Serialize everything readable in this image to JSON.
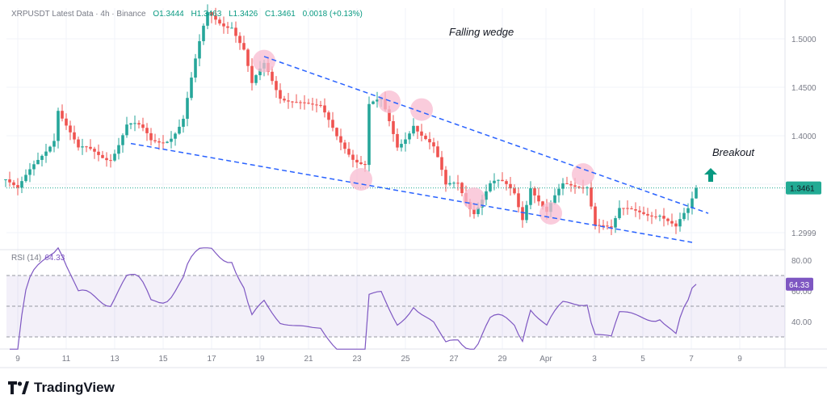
{
  "header": {
    "symbol": "XRPUSDT Latest Data · 4h · Binance",
    "open": "O1.3444",
    "high": "H1.3463",
    "low": "L1.3426",
    "close": "C1.3461",
    "change": "0.0018 (+0.13%)"
  },
  "annotations": {
    "pattern": "Falling wedge",
    "breakout": "Breakout"
  },
  "rsi": {
    "label": "RSI (14)",
    "value": "64.33",
    "color": "#7e57c2",
    "levels": [
      70,
      50,
      30
    ]
  },
  "price_axis": {
    "ticks": [
      "1.5000",
      "1.4500",
      "1.4000",
      "1.2999"
    ],
    "last_price": "1.3461",
    "last_color": "#22ab94"
  },
  "rsi_axis": {
    "ticks": [
      "80.00",
      "60.00",
      "40.00"
    ]
  },
  "time_axis": {
    "ticks": [
      "9",
      "11",
      "13",
      "15",
      "17",
      "19",
      "21",
      "23",
      "25",
      "27",
      "29",
      "Apr",
      "3",
      "5",
      "7",
      "9"
    ]
  },
  "brand": "TradingView",
  "colors": {
    "up": "#26a69a",
    "down": "#ef5350",
    "wedge": "#2962ff",
    "circle": "#f8bbd0",
    "arrow": "#089981"
  },
  "chart_data": {
    "type": "candlestick",
    "interval": "4h",
    "price_path": [
      [
        "Mar 08 12:00",
        1.355
      ],
      [
        "Mar 09 00:00",
        1.345
      ],
      [
        "Mar 09 16:00",
        1.37
      ],
      [
        "Mar 10 12:00",
        1.4
      ],
      [
        "Mar 10 16:00",
        1.43
      ],
      [
        "Mar 11 12:00",
        1.38
      ],
      [
        "Mar 12 20:00",
        1.385
      ],
      [
        "Mar 13 12:00",
        1.41
      ],
      [
        "Mar 14 12:00",
        1.39
      ],
      [
        "Mar 15 20:00",
        1.42
      ],
      [
        "Mar 16 08:00",
        1.47
      ],
      [
        "Mar 16 20:00",
        1.52
      ],
      [
        "Mar 17 20:00",
        1.52
      ],
      [
        "Mar 18 08:00",
        1.49
      ],
      [
        "Mar 18 16:00",
        1.45
      ],
      [
        "Mar 19 04:00",
        1.47
      ],
      [
        "Mar 19 20:00",
        1.44
      ],
      [
        "Mar 21 12:00",
        1.43
      ],
      [
        "Mar 22 04:00",
        1.4
      ],
      [
        "Mar 22 20:00",
        1.38
      ],
      [
        "Mar 23 08:00",
        1.37
      ],
      [
        "Mar 23 12:00",
        1.43
      ],
      [
        "Mar 24 00:00",
        1.43
      ],
      [
        "Mar 24 16:00",
        1.39
      ],
      [
        "Mar 25 08:00",
        1.42
      ],
      [
        "Mar 26 04:00",
        1.38
      ],
      [
        "Mar 26 16:00",
        1.34
      ],
      [
        "Mar 27 04:00",
        1.355
      ],
      [
        "Mar 27 20:00",
        1.33
      ],
      [
        "Mar 28 12:00",
        1.345
      ],
      [
        "Mar 29 12:00",
        1.34
      ],
      [
        "Mar 29 20:00",
        1.32
      ],
      [
        "Mar 30 04:00",
        1.355
      ],
      [
        "Mar 30 20:00",
        1.32
      ],
      [
        "Mar 31 12:00",
        1.345
      ],
      [
        "Apr 01 12:00",
        1.35
      ],
      [
        "Apr 01 20:00",
        1.31
      ],
      [
        "Apr 02 12:00",
        1.305
      ],
      [
        "Apr 02 20:00",
        1.325
      ],
      [
        "Apr 04 12:00",
        1.32
      ],
      [
        "Apr 05 04:00",
        1.3
      ],
      [
        "Apr 05 16:00",
        1.32
      ],
      [
        "Apr 06 00:00",
        1.3461
      ]
    ],
    "wedge_upper": [
      [
        "Mar 19 04:00",
        1.4817
      ],
      [
        "Apr 06 12:00",
        1.32
      ]
    ],
    "wedge_lower": [
      [
        "Mar 13 16:00",
        1.392
      ],
      [
        "Apr 05 20:00",
        1.29
      ]
    ],
    "touch_points": [
      [
        "Mar 19 04:00",
        1.477
      ],
      [
        "Mar 24 08:00",
        1.435
      ],
      [
        "Mar 25 16:00",
        1.427
      ],
      [
        "Mar 23 04:00",
        1.355
      ],
      [
        "Mar 27 20:00",
        1.335
      ],
      [
        "Mar 31 00:00",
        1.32
      ],
      [
        "Apr 01 08:00",
        1.36
      ]
    ],
    "ylim": [
      1.27,
      1.53
    ],
    "rsi_ylim": [
      20,
      90
    ]
  }
}
